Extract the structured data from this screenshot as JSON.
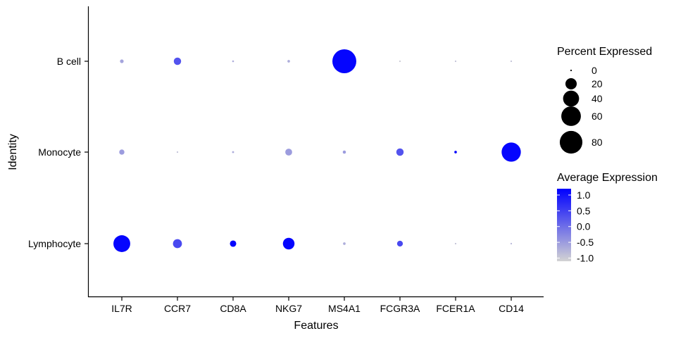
{
  "chart_data": {
    "type": "dot",
    "xlabel": "Features",
    "ylabel": "Identity",
    "features": [
      "IL7R",
      "CCR7",
      "CD8A",
      "NKG7",
      "MS4A1",
      "FCGR3A",
      "FCER1A",
      "CD14"
    ],
    "identities": [
      "B cell",
      "Monocyte",
      "Lymphocyte"
    ],
    "points": [
      {
        "identity": "B cell",
        "feature": "IL7R",
        "pct": 2,
        "avg": -0.6
      },
      {
        "identity": "B cell",
        "feature": "CCR7",
        "pct": 8,
        "avg": 0.3
      },
      {
        "identity": "B cell",
        "feature": "CD8A",
        "pct": 0.5,
        "avg": -0.7
      },
      {
        "identity": "B cell",
        "feature": "NKG7",
        "pct": 1,
        "avg": -0.7
      },
      {
        "identity": "B cell",
        "feature": "MS4A1",
        "pct": 85,
        "avg": 1.15
      },
      {
        "identity": "B cell",
        "feature": "FCGR3A",
        "pct": 0.3,
        "avg": -1.0
      },
      {
        "identity": "B cell",
        "feature": "FCER1A",
        "pct": 0.2,
        "avg": -0.9
      },
      {
        "identity": "B cell",
        "feature": "CD14",
        "pct": 0.2,
        "avg": -0.9
      },
      {
        "identity": "Monocyte",
        "feature": "IL7R",
        "pct": 4,
        "avg": -0.5
      },
      {
        "identity": "Monocyte",
        "feature": "CCR7",
        "pct": 0.3,
        "avg": -0.9
      },
      {
        "identity": "Monocyte",
        "feature": "CD8A",
        "pct": 0.6,
        "avg": -0.7
      },
      {
        "identity": "Monocyte",
        "feature": "NKG7",
        "pct": 7,
        "avg": -0.5
      },
      {
        "identity": "Monocyte",
        "feature": "MS4A1",
        "pct": 1.5,
        "avg": -0.5
      },
      {
        "identity": "Monocyte",
        "feature": "FCGR3A",
        "pct": 8,
        "avg": 0.3
      },
      {
        "identity": "Monocyte",
        "feature": "FCER1A",
        "pct": 1,
        "avg": 1.1
      },
      {
        "identity": "Monocyte",
        "feature": "CD14",
        "pct": 55,
        "avg": 1.15
      },
      {
        "identity": "Lymphocyte",
        "feature": "IL7R",
        "pct": 42,
        "avg": 1.15
      },
      {
        "identity": "Lymphocyte",
        "feature": "CCR7",
        "pct": 12,
        "avg": 0.4
      },
      {
        "identity": "Lymphocyte",
        "feature": "CD8A",
        "pct": 6,
        "avg": 1.15
      },
      {
        "identity": "Lymphocyte",
        "feature": "NKG7",
        "pct": 20,
        "avg": 1.15
      },
      {
        "identity": "Lymphocyte",
        "feature": "MS4A1",
        "pct": 1,
        "avg": -0.7
      },
      {
        "identity": "Lymphocyte",
        "feature": "FCGR3A",
        "pct": 5,
        "avg": 0.4
      },
      {
        "identity": "Lymphocyte",
        "feature": "FCER1A",
        "pct": 0.2,
        "avg": -0.9
      },
      {
        "identity": "Lymphocyte",
        "feature": "CD14",
        "pct": 0.3,
        "avg": -0.8
      }
    ],
    "size_legend": {
      "title": "Percent Expressed",
      "values": [
        0,
        20,
        40,
        60,
        80
      ],
      "labels": [
        "0",
        "20",
        "40",
        "60",
        "80"
      ]
    },
    "color_legend": {
      "title": "Average Expression",
      "range": [
        -1.1,
        1.2
      ],
      "ticks": [
        1.0,
        0.5,
        0.0,
        -0.5,
        -1.0
      ],
      "tick_labels": [
        "1.0",
        "0.5",
        "0.0",
        "-0.5",
        "-1.0"
      ],
      "low_color": "#d3d3d3",
      "high_color": "#0000ff"
    }
  }
}
